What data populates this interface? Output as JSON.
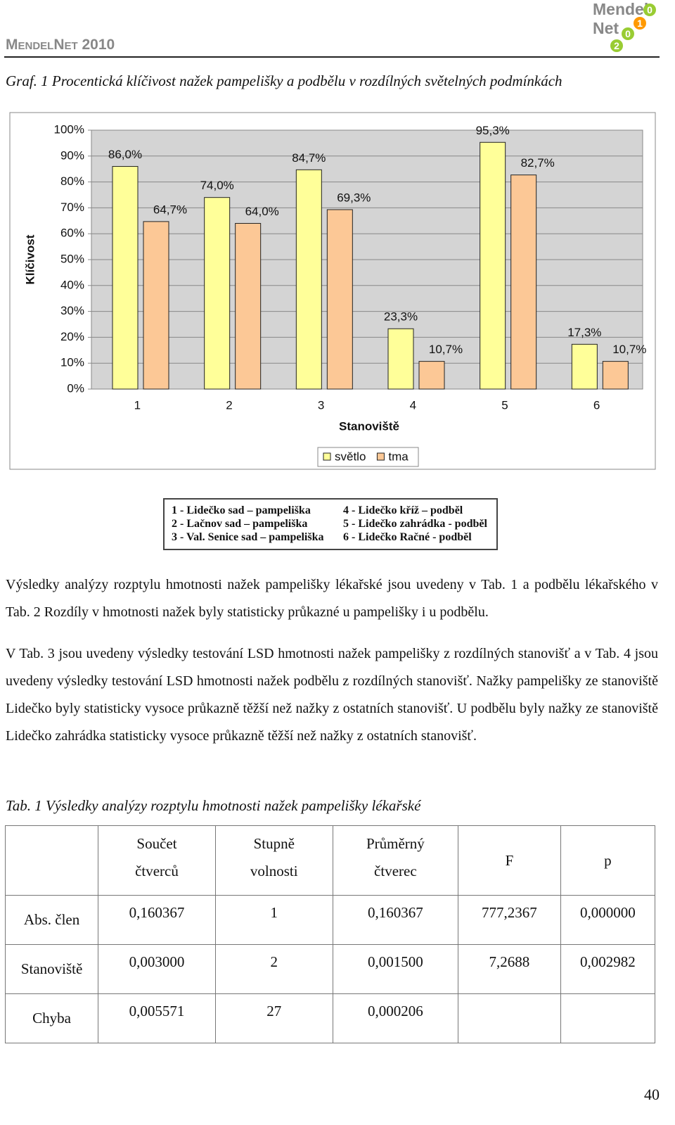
{
  "header": {
    "title": "MendelNet 2010",
    "logo_top": "Mendel",
    "logo_bottom": "Net",
    "logo_digits": [
      "0",
      "1",
      "0",
      "2"
    ]
  },
  "figure_caption": "Graf. 1 Procentická klíčivost nažek pampelišky a podbělu v rozdílných světelných podmínkách",
  "chart_data": {
    "type": "bar",
    "x_label": "Stanoviště",
    "y_label": "Klíčivost",
    "categories": [
      "1",
      "2",
      "3",
      "4",
      "5",
      "6"
    ],
    "series": [
      {
        "name": "světlo",
        "color": "#ffff99",
        "values": [
          86.0,
          74.0,
          84.7,
          23.3,
          95.3,
          17.3
        ],
        "value_labels": [
          "86,0%",
          "74,0%",
          "84,7%",
          "23,3%",
          "95,3%",
          "17,3%"
        ]
      },
      {
        "name": "tma",
        "color": "#fcc896",
        "values": [
          64.7,
          64.0,
          69.3,
          10.7,
          82.7,
          10.7
        ],
        "value_labels": [
          "64,7%",
          "64,0%",
          "69,3%",
          "10,7%",
          "82,7%",
          "10,7%"
        ]
      }
    ],
    "ylim": [
      0,
      100
    ],
    "yticks": [
      {
        "value": 0,
        "label": "0%"
      },
      {
        "value": 10,
        "label": "10%"
      },
      {
        "value": 20,
        "label": "20%"
      },
      {
        "value": 30,
        "label": "30%"
      },
      {
        "value": 40,
        "label": "40%"
      },
      {
        "value": 50,
        "label": "50%"
      },
      {
        "value": 60,
        "label": "60%"
      },
      {
        "value": 70,
        "label": "70%"
      },
      {
        "value": 80,
        "label": "80%"
      },
      {
        "value": 90,
        "label": "90%"
      },
      {
        "value": 100,
        "label": "100%"
      }
    ],
    "grid": true,
    "legend": "bottom"
  },
  "site_legend": [
    "1 - Lidečko sad – pampeliška",
    "2 - Lačnov sad – pampeliška",
    "3 - Val. Senice sad – pampeliška",
    "4 - Lidečko kříž – podběl",
    "5 - Lidečko zahrádka - podběl",
    "6 - Lidečko Račné - podběl"
  ],
  "paragraphs": [
    "Výsledky analýzy rozptylu hmotnosti nažek pampelišky lékařské jsou uvedeny v Tab. 1 a podbělu lékařského v Tab. 2 Rozdíly v hmotnosti nažek byly statisticky průkazné u pampelišky i u podbělu.",
    "V Tab. 3 jsou uvedeny výsledky testování LSD hmotnosti nažek pampelišky z rozdílných stanovišť a v Tab. 4 jsou uvedeny výsledky testování LSD hmotnosti nažek podbělu z rozdílných stanovišť. Nažky pampelišky ze stanoviště Lidečko byly statisticky vysoce průkazně těžší než nažky z ostatních stanovišť. U podbělu byly nažky ze stanoviště Lidečko zahrádka statisticky vysoce průkazně těžší než nažky z ostatních stanovišť."
  ],
  "table_caption": "Tab. 1 Výsledky analýzy rozptylu hmotnosti nažek pampelišky lékařské",
  "table": {
    "header": [
      "Součet čtverců",
      "Stupně volnosti",
      "Průměrný čtverec",
      "F",
      "p"
    ],
    "rows": [
      [
        "Abs. člen",
        "0,160367",
        "1",
        "0,160367",
        "777,2367",
        "0,000000"
      ],
      [
        "Stanoviště",
        "0,003000",
        "2",
        "0,001500",
        "7,2688",
        "0,002982"
      ],
      [
        "Chyba",
        "0,005571",
        "27",
        "0,000206"
      ]
    ]
  },
  "page_number": "40"
}
